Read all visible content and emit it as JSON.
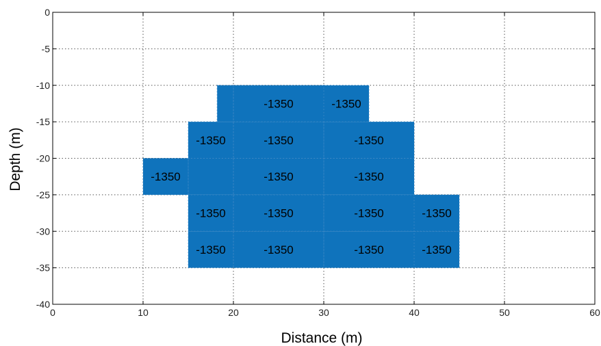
{
  "chart_data": {
    "type": "heatmap",
    "xlabel": "Distance (m)",
    "ylabel": "Depth (m)",
    "xlim": [
      0,
      60
    ],
    "ylim": [
      -40,
      0
    ],
    "xticks": [
      0,
      10,
      20,
      30,
      40,
      50,
      60
    ],
    "yticks": [
      0,
      -5,
      -10,
      -15,
      -20,
      -25,
      -30,
      -35,
      -40
    ],
    "xtick_labels": [
      "0",
      "10",
      "20",
      "30",
      "40",
      "50",
      "60"
    ],
    "ytick_labels": [
      "0",
      "-5",
      "-10",
      "-15",
      "-20",
      "-25",
      "-30",
      "-35",
      "-40"
    ],
    "grid": true,
    "fill_color": "#0f73bc",
    "cells": [
      {
        "x0": 18.2,
        "x1": 20,
        "y_top": -10,
        "y_bottom": -15,
        "label": ""
      },
      {
        "x0": 20,
        "x1": 30,
        "y_top": -10,
        "y_bottom": -15,
        "label": "-1350"
      },
      {
        "x0": 30,
        "x1": 35,
        "y_top": -10,
        "y_bottom": -15,
        "label": "-1350"
      },
      {
        "x0": 15,
        "x1": 20,
        "y_top": -15,
        "y_bottom": -20,
        "label": "-1350"
      },
      {
        "x0": 20,
        "x1": 30,
        "y_top": -15,
        "y_bottom": -20,
        "label": "-1350"
      },
      {
        "x0": 30,
        "x1": 40,
        "y_top": -15,
        "y_bottom": -20,
        "label": "-1350"
      },
      {
        "x0": 10,
        "x1": 15,
        "y_top": -20,
        "y_bottom": -25,
        "label": "-1350"
      },
      {
        "x0": 15,
        "x1": 20,
        "y_top": -20,
        "y_bottom": -25,
        "label": ""
      },
      {
        "x0": 20,
        "x1": 30,
        "y_top": -20,
        "y_bottom": -25,
        "label": "-1350"
      },
      {
        "x0": 30,
        "x1": 40,
        "y_top": -20,
        "y_bottom": -25,
        "label": "-1350"
      },
      {
        "x0": 15,
        "x1": 20,
        "y_top": -25,
        "y_bottom": -30,
        "label": "-1350"
      },
      {
        "x0": 20,
        "x1": 30,
        "y_top": -25,
        "y_bottom": -30,
        "label": "-1350"
      },
      {
        "x0": 30,
        "x1": 40,
        "y_top": -25,
        "y_bottom": -30,
        "label": "-1350"
      },
      {
        "x0": 40,
        "x1": 45,
        "y_top": -25,
        "y_bottom": -30,
        "label": "-1350"
      },
      {
        "x0": 15,
        "x1": 20,
        "y_top": -30,
        "y_bottom": -35,
        "label": "-1350"
      },
      {
        "x0": 20,
        "x1": 30,
        "y_top": -30,
        "y_bottom": -35,
        "label": "-1350"
      },
      {
        "x0": 30,
        "x1": 40,
        "y_top": -30,
        "y_bottom": -35,
        "label": "-1350"
      },
      {
        "x0": 40,
        "x1": 45,
        "y_top": -30,
        "y_bottom": -35,
        "label": "-1350"
      }
    ]
  }
}
